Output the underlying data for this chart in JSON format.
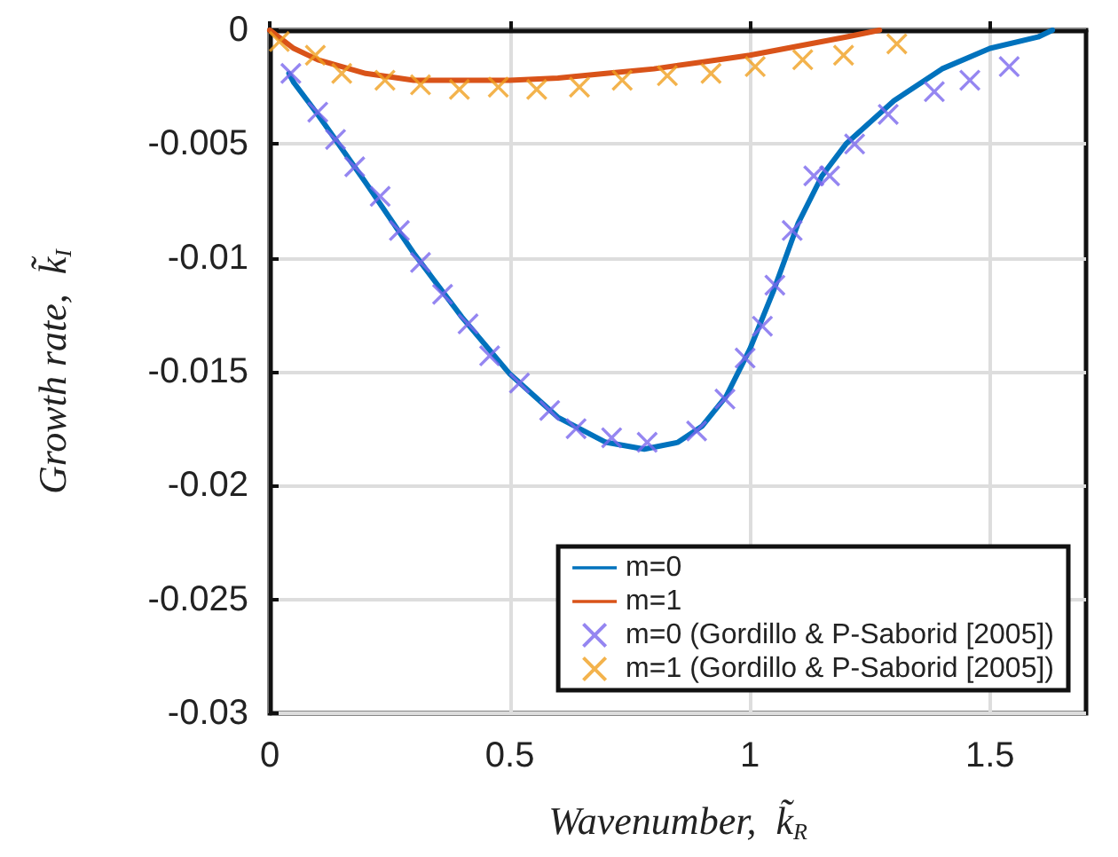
{
  "chart_data": {
    "type": "line",
    "xlabel": "Wavenumber,  k̃$_{R}$",
    "ylabel": "Growth rate,  k̃$_{I}$",
    "xlim": [
      0,
      1.7
    ],
    "xticks": [
      0,
      0.5,
      1,
      1.5
    ],
    "ylim": [
      -0.03,
      0
    ],
    "yticks": [
      -0.03,
      -0.025,
      -0.02,
      -0.015,
      -0.01,
      -0.005,
      0
    ],
    "grid": true,
    "legend": "bottom right",
    "series": [
      {
        "name": "m=0",
        "color": "#0072bd",
        "line_style": "solid",
        "marker": "none",
        "x": [
          0.04,
          0.05,
          0.1,
          0.2,
          0.3,
          0.4,
          0.5,
          0.6,
          0.7,
          0.78,
          0.85,
          0.9,
          0.95,
          1.0,
          1.05,
          1.1,
          1.15,
          1.2,
          1.3,
          1.4,
          1.5,
          1.6,
          1.63
        ],
        "values": [
          -0.0019,
          -0.0023,
          -0.0037,
          -0.0067,
          -0.0098,
          -0.0126,
          -0.0151,
          -0.017,
          -0.0181,
          -0.0184,
          -0.0181,
          -0.0174,
          -0.0161,
          -0.014,
          -0.0114,
          -0.0085,
          -0.0064,
          -0.005,
          -0.0031,
          -0.0017,
          -0.0008,
          -0.0003,
          0
        ]
      },
      {
        "name": "m=1",
        "color": "#d95319",
        "line_style": "solid",
        "marker": "none",
        "x": [
          0,
          0.05,
          0.1,
          0.2,
          0.3,
          0.4,
          0.5,
          0.6,
          0.7,
          0.8,
          0.9,
          1.0,
          1.1,
          1.2,
          1.27
        ],
        "values": [
          0,
          -0.0008,
          -0.0013,
          -0.0019,
          -0.0022,
          -0.0022,
          -0.0022,
          -0.0021,
          -0.0019,
          -0.0017,
          -0.0014,
          -0.0011,
          -0.0007,
          -0.0003,
          0
        ]
      },
      {
        "name": "m=0 (Gordillo & P-Saborid [2005])",
        "type": "scatter",
        "color": "#7b68ee",
        "marker": "cross",
        "x": [
          0.044,
          0.1,
          0.137,
          0.177,
          0.23,
          0.27,
          0.314,
          0.36,
          0.413,
          0.458,
          0.52,
          0.583,
          0.638,
          0.712,
          0.786,
          0.889,
          0.948,
          0.99,
          1.026,
          1.052,
          1.088,
          1.133,
          1.166,
          1.218,
          1.288,
          1.384,
          1.458,
          1.54
        ],
        "values": [
          -0.0019,
          -0.0036,
          -0.0048,
          -0.006,
          -0.0073,
          -0.0088,
          -0.0102,
          -0.0116,
          -0.0129,
          -0.0143,
          -0.0155,
          -0.0167,
          -0.0175,
          -0.0179,
          -0.0181,
          -0.0176,
          -0.0162,
          -0.0144,
          -0.013,
          -0.0112,
          -0.0088,
          -0.0064,
          -0.0064,
          -0.005,
          -0.0037,
          -0.0027,
          -0.0022,
          -0.0016
        ]
      },
      {
        "name": "m=1 (Gordillo & P-Saborid [2005])",
        "type": "scatter",
        "color": "#f0a020",
        "marker": "cross",
        "x": [
          0.02,
          0.095,
          0.15,
          0.24,
          0.314,
          0.395,
          0.476,
          0.556,
          0.645,
          0.734,
          0.828,
          0.919,
          1.011,
          1.11,
          1.195,
          1.306
        ],
        "values": [
          -0.0005,
          -0.0011,
          -0.0019,
          -0.0022,
          -0.0024,
          -0.0026,
          -0.0025,
          -0.0026,
          -0.0025,
          -0.0022,
          -0.002,
          -0.0019,
          -0.0016,
          -0.0013,
          -0.0011,
          -0.0006
        ]
      }
    ]
  }
}
